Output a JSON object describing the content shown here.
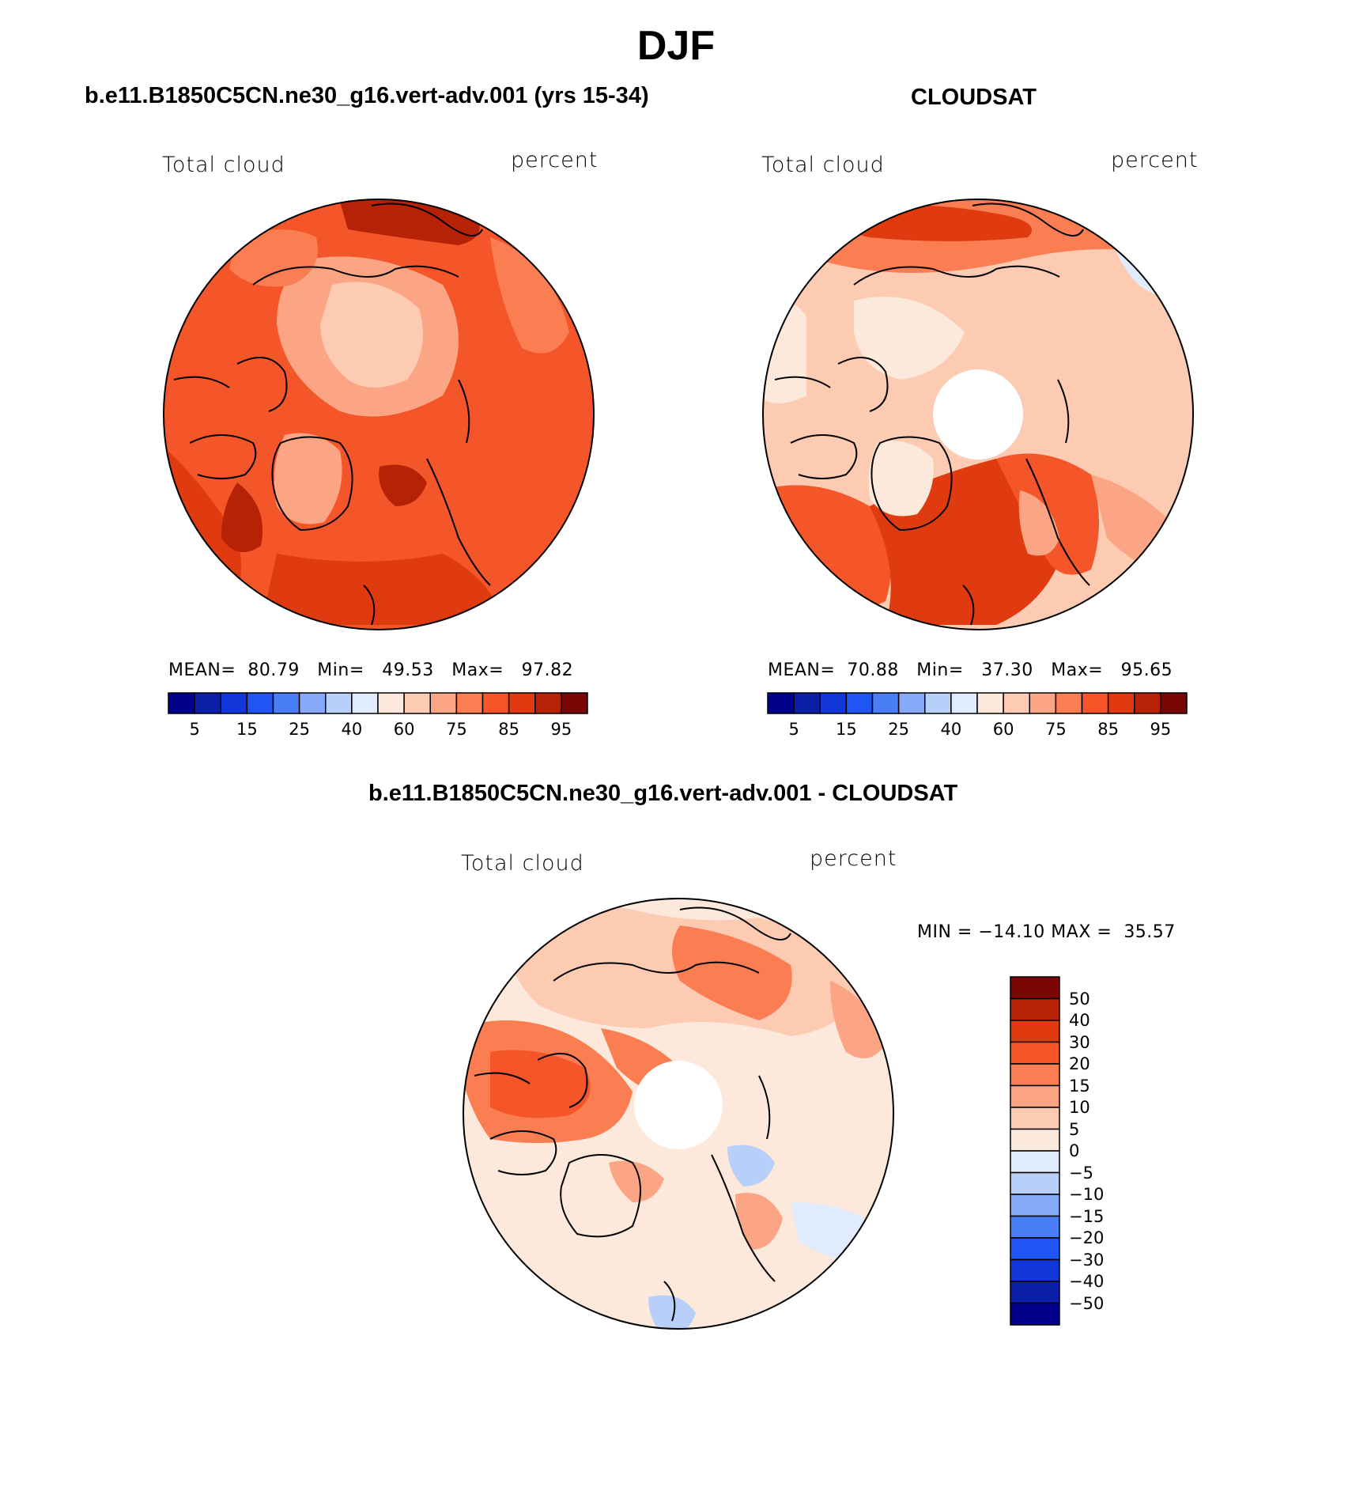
{
  "title": "DJF",
  "panels": [
    {
      "title": "b.e11.B1850C5CN.ne30_g16.vert-adv.001 (yrs 15-34)",
      "variable": "Total cloud",
      "units": "percent",
      "stats": {
        "mean_label": "MEAN=",
        "mean": "80.79",
        "min_label": "Min=",
        "min": "49.53",
        "max_label": "Max=",
        "max": "97.82"
      },
      "colorbar_labels": [
        "5",
        "15",
        "25",
        "40",
        "60",
        "75",
        "85",
        "95"
      ]
    },
    {
      "title": "CLOUDSAT",
      "variable": "Total cloud",
      "units": "percent",
      "stats": {
        "mean_label": "MEAN=",
        "mean": "70.88",
        "min_label": "Min=",
        "min": "37.30",
        "max_label": "Max=",
        "max": "95.65"
      },
      "colorbar_labels": [
        "5",
        "15",
        "25",
        "40",
        "60",
        "75",
        "85",
        "95"
      ]
    }
  ],
  "difference": {
    "title": "b.e11.B1850C5CN.ne30_g16.vert-adv.001 - CLOUDSAT",
    "variable": "Total cloud",
    "units": "percent",
    "stats": {
      "min_label": "MIN =",
      "min": "−14.10",
      "max_label": "MAX =",
      "max": "35.57"
    },
    "colorbar_labels": [
      "50",
      "40",
      "30",
      "20",
      "15",
      "10",
      "5",
      "0",
      "−5",
      "−10",
      "−15",
      "−20",
      "−30",
      "−40",
      "−50"
    ]
  },
  "colors": {
    "abs_scale": [
      "#00008b",
      "#0a1fa8",
      "#1237d8",
      "#1f55f2",
      "#4a7ef6",
      "#86aaf7",
      "#b8cffa",
      "#e0ecfd",
      "#fde9db",
      "#fdcab2",
      "#fca584",
      "#fb7d52",
      "#f4562a",
      "#df3a10",
      "#b52206",
      "#7a0605"
    ],
    "diff_scale": [
      "#7a0605",
      "#b52206",
      "#df3a10",
      "#f4562a",
      "#fb7d52",
      "#fca584",
      "#fdcab2",
      "#fde9db",
      "#e0ecfd",
      "#b8cffa",
      "#86aaf7",
      "#4a7ef6",
      "#1f55f2",
      "#1237d8",
      "#0a1fa8",
      "#00008b"
    ]
  }
}
